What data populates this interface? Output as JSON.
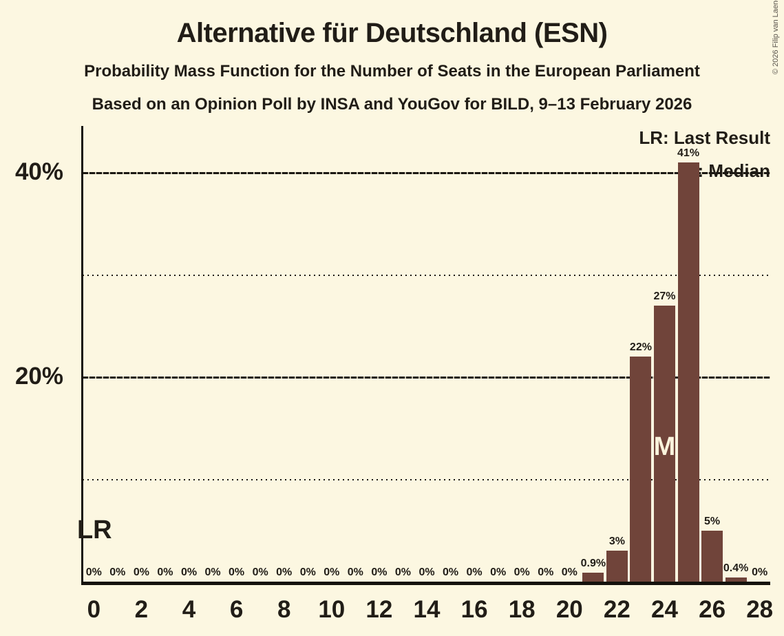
{
  "header": {
    "title": "Alternative für Deutschland (ESN)",
    "subtitle": "Probability Mass Function for the Number of Seats in the European Parliament",
    "poll_line": "Based on an Opinion Poll by INSA and YouGov for BILD, 9–13 February 2026"
  },
  "copyright": "© 2026 Filip van Laenen",
  "legend": {
    "last_result": "LR: Last Result",
    "median": "M: Median"
  },
  "markers": {
    "last_result": "LR",
    "median": "M"
  },
  "colors": {
    "background": "#FCF7E1",
    "bar": "#70443A",
    "text": "#211D17",
    "median_text": "#FAF3DC"
  },
  "chart_data": {
    "type": "bar",
    "title": "Probability Mass Function for the Number of Seats in the European Parliament",
    "x": [
      0,
      1,
      2,
      3,
      4,
      5,
      6,
      7,
      8,
      9,
      10,
      11,
      12,
      13,
      14,
      15,
      16,
      17,
      18,
      19,
      20,
      21,
      22,
      23,
      24,
      25,
      26,
      27,
      28
    ],
    "values": [
      0,
      0,
      0,
      0,
      0,
      0,
      0,
      0,
      0,
      0,
      0,
      0,
      0,
      0,
      0,
      0,
      0,
      0,
      0,
      0,
      0,
      0.9,
      3,
      22,
      27,
      41,
      5,
      0.4,
      0
    ],
    "bar_labels": [
      "0%",
      "0%",
      "0%",
      "0%",
      "0%",
      "0%",
      "0%",
      "0%",
      "0%",
      "0%",
      "0%",
      "0%",
      "0%",
      "0%",
      "0%",
      "0%",
      "0%",
      "0%",
      "0%",
      "0%",
      "0%",
      "0.9%",
      "3%",
      "22%",
      "27%",
      "41%",
      "5%",
      "0.4%",
      "0%"
    ],
    "x_tick_labels": [
      "0",
      "2",
      "4",
      "6",
      "8",
      "10",
      "12",
      "14",
      "16",
      "18",
      "20",
      "22",
      "24",
      "26",
      "28"
    ],
    "y_ticks": [
      {
        "value": 20,
        "label": "20%"
      },
      {
        "value": 40,
        "label": "40%"
      }
    ],
    "gridlines": [
      {
        "value": 10,
        "style": "dotted"
      },
      {
        "value": 20,
        "style": "dashed"
      },
      {
        "value": 30,
        "style": "dotted"
      },
      {
        "value": 40,
        "style": "dashed"
      }
    ],
    "ylim": [
      0,
      44.5
    ],
    "grid": true,
    "legend_position": "top-right",
    "median_seat": 24,
    "last_result_seat": 0
  }
}
